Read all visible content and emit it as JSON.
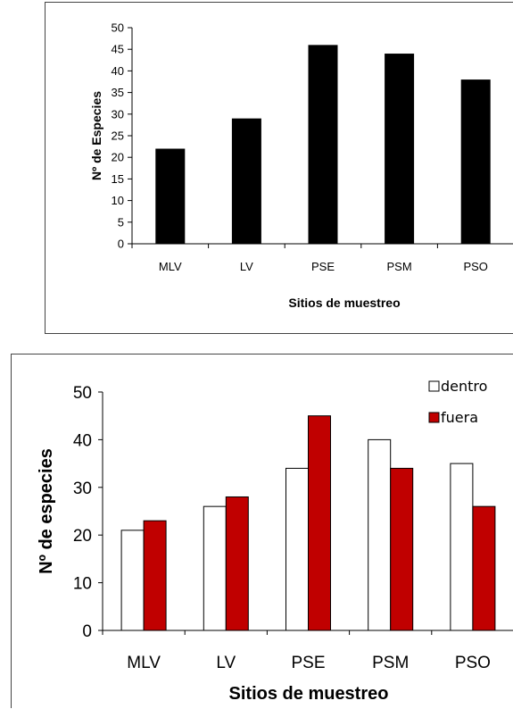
{
  "chart_data": [
    {
      "type": "bar",
      "categories": [
        "MLV",
        "LV",
        "PSE",
        "PSM",
        "PSO"
      ],
      "values": [
        22,
        29,
        46,
        44,
        38
      ],
      "xlabel": "Sitios de muestreo",
      "ylabel": "Nº de Especies",
      "ylim": [
        0,
        50
      ],
      "yticks": [
        0,
        5,
        10,
        15,
        20,
        25,
        30,
        35,
        40,
        45,
        50
      ],
      "colors": {
        "bar": "#000000"
      },
      "grid": false
    },
    {
      "type": "bar",
      "categories": [
        "MLV",
        "LV",
        "PSE",
        "PSM",
        "PSO"
      ],
      "series": [
        {
          "name": "dentro",
          "values": [
            21,
            26,
            34,
            40,
            35
          ],
          "color": "#ffffff"
        },
        {
          "name": "fuera",
          "values": [
            23,
            28,
            45,
            34,
            26
          ],
          "color": "#c00000"
        }
      ],
      "xlabel": "Sitios de muestreo",
      "ylabel": "Nº de especies",
      "ylim": [
        0,
        50
      ],
      "yticks": [
        0,
        10,
        20,
        30,
        40,
        50
      ],
      "legend": "top-right",
      "grid": false
    }
  ]
}
